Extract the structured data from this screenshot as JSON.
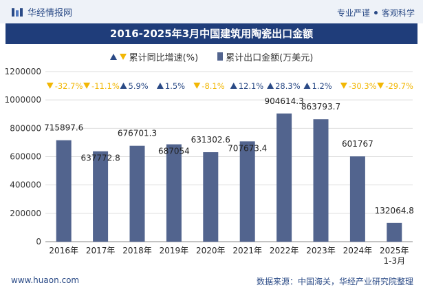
{
  "header": {
    "brand": "华经情报网",
    "tagline": [
      "专业严谨",
      "客观科学"
    ]
  },
  "footer": {
    "website": "www.huaon.com",
    "source": "数据来源：中国海关，华经产业研究院整理"
  },
  "colors": {
    "bar": "#52648e",
    "up": "#2a4a86",
    "down": "#f2b705",
    "title_bg": "#1f3d7a"
  },
  "chart_data": {
    "type": "bar",
    "title": "2016-2025年3月中国建筑用陶瓷出口金额",
    "legend": {
      "growth_label": "累计同比增速(%)",
      "value_label": "累计出口金额(万美元)",
      "placement": "top-center"
    },
    "categories": [
      "2016年",
      "2017年",
      "2018年",
      "2019年",
      "2020年",
      "2021年",
      "2022年",
      "2023年",
      "2024年",
      "2025年\n1-3月"
    ],
    "series": [
      {
        "name": "累计出口金额(万美元)",
        "values": [
          715897.6,
          637772.8,
          676701.3,
          687054,
          631302.6,
          707673.4,
          904614.3,
          863793.7,
          601767,
          132064.8
        ],
        "labels": [
          "715897.6",
          "637772.8",
          "676701.3",
          "687054",
          "631302.6",
          "707673.4",
          "904614.3",
          "863793.7",
          "601767",
          "132064.8"
        ]
      },
      {
        "name": "累计同比增速(%)",
        "values": [
          -32.7,
          -11.1,
          5.9,
          1.5,
          -8.1,
          12.1,
          28.3,
          1.2,
          -30.3,
          -29.7
        ],
        "labels": [
          "-32.7%",
          "-11.1%",
          "5.9%",
          "1.5%",
          "-8.1%",
          "12.1%",
          "28.3%",
          "1.2%",
          "-30.3%",
          "-29.7%"
        ]
      }
    ],
    "yticks": [
      "0",
      "200000",
      "400000",
      "600000",
      "800000",
      "1000000",
      "1200000"
    ],
    "ylim": [
      0,
      1200000
    ],
    "grid": true
  }
}
